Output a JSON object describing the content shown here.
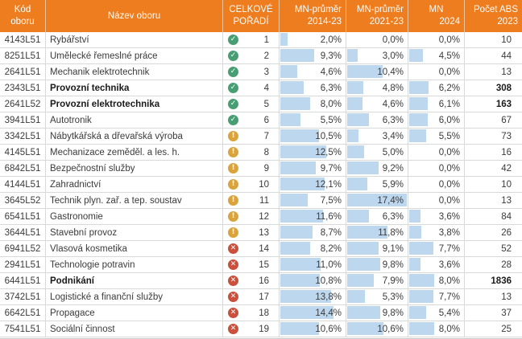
{
  "table": {
    "columns": [
      {
        "id": "code",
        "line1": "Kód oboru",
        "line2": ""
      },
      {
        "id": "name",
        "line1": "Název oboru",
        "line2": ""
      },
      {
        "id": "rank",
        "line1": "CELKOVÉ",
        "line2": "POŘADÍ"
      },
      {
        "id": "mn_avg_2014_23",
        "line1": "MN-průměr",
        "line2": "2014-23"
      },
      {
        "id": "mn_avg_2021_23",
        "line1": "MN-průměr",
        "line2": "2021-23"
      },
      {
        "id": "mn_2024",
        "line1": "MN",
        "line2": "2024"
      },
      {
        "id": "abs_2023",
        "line1": "Počet ABS",
        "line2": "2023"
      }
    ],
    "bar_scale_max": 17.4,
    "icon_glyphs": {
      "check": "✓",
      "warn": "!",
      "cross": "✕"
    },
    "icon_names": {
      "check": "green-check-icon",
      "warn": "amber-exclamation-icon",
      "cross": "red-cross-icon"
    },
    "rows": [
      {
        "code": "4143L51",
        "name": "Rybářství",
        "icon": "check",
        "rank": "1",
        "mn_avg_2014_23": "2,0%",
        "mn_avg_2021_23": "0,0%",
        "mn_2024": "0,0%",
        "abs_2023": "10",
        "bold": false
      },
      {
        "code": "8251L51",
        "name": "Umělecké řemeslné práce",
        "icon": "check",
        "rank": "2",
        "mn_avg_2014_23": "9,3%",
        "mn_avg_2021_23": "3,0%",
        "mn_2024": "4,5%",
        "abs_2023": "44",
        "bold": false
      },
      {
        "code": "2641L51",
        "name": "Mechanik elektrotechnik",
        "icon": "check",
        "rank": "3",
        "mn_avg_2014_23": "4,6%",
        "mn_avg_2021_23": "10,4%",
        "mn_2024": "0,0%",
        "abs_2023": "13",
        "bold": false
      },
      {
        "code": "2343L51",
        "name": "Provozní technika",
        "icon": "check",
        "rank": "4",
        "mn_avg_2014_23": "6,3%",
        "mn_avg_2021_23": "4,8%",
        "mn_2024": "6,2%",
        "abs_2023": "308",
        "bold": true
      },
      {
        "code": "2641L52",
        "name": "Provozní elektrotechnika",
        "icon": "check",
        "rank": "5",
        "mn_avg_2014_23": "8,0%",
        "mn_avg_2021_23": "4,6%",
        "mn_2024": "6,1%",
        "abs_2023": "163",
        "bold": true
      },
      {
        "code": "3941L51",
        "name": "Autotronik",
        "icon": "check",
        "rank": "6",
        "mn_avg_2014_23": "5,5%",
        "mn_avg_2021_23": "6,3%",
        "mn_2024": "6,0%",
        "abs_2023": "67",
        "bold": false
      },
      {
        "code": "3342L51",
        "name": "Nábytkářská a dřevařská výroba",
        "icon": "warn",
        "rank": "7",
        "mn_avg_2014_23": "10,5%",
        "mn_avg_2021_23": "3,4%",
        "mn_2024": "5,5%",
        "abs_2023": "73",
        "bold": false
      },
      {
        "code": "4145L51",
        "name": "Mechanizace zeměděl. a les. h.",
        "icon": "warn",
        "rank": "8",
        "mn_avg_2014_23": "12,5%",
        "mn_avg_2021_23": "5,0%",
        "mn_2024": "0,0%",
        "abs_2023": "16",
        "bold": false
      },
      {
        "code": "6842L51",
        "name": "Bezpečnostní služby",
        "icon": "warn",
        "rank": "9",
        "mn_avg_2014_23": "9,7%",
        "mn_avg_2021_23": "9,2%",
        "mn_2024": "0,0%",
        "abs_2023": "42",
        "bold": false
      },
      {
        "code": "4144L51",
        "name": "Zahradnictví",
        "icon": "warn",
        "rank": "10",
        "mn_avg_2014_23": "12,1%",
        "mn_avg_2021_23": "5,9%",
        "mn_2024": "0,0%",
        "abs_2023": "10",
        "bold": false
      },
      {
        "code": "3645L52",
        "name": "Technik plyn. zař. a tep. soustav",
        "icon": "warn",
        "rank": "11",
        "mn_avg_2014_23": "7,5%",
        "mn_avg_2021_23": "17,4%",
        "mn_2024": "0,0%",
        "abs_2023": "13",
        "bold": false
      },
      {
        "code": "6541L51",
        "name": "Gastronomie",
        "icon": "warn",
        "rank": "12",
        "mn_avg_2014_23": "11,6%",
        "mn_avg_2021_23": "6,3%",
        "mn_2024": "3,6%",
        "abs_2023": "84",
        "bold": false
      },
      {
        "code": "3644L51",
        "name": "Stavební provoz",
        "icon": "warn",
        "rank": "13",
        "mn_avg_2014_23": "8,7%",
        "mn_avg_2021_23": "11,8%",
        "mn_2024": "3,8%",
        "abs_2023": "26",
        "bold": false
      },
      {
        "code": "6941L52",
        "name": "Vlasová kosmetika",
        "icon": "cross",
        "rank": "14",
        "mn_avg_2014_23": "8,2%",
        "mn_avg_2021_23": "9,1%",
        "mn_2024": "7,7%",
        "abs_2023": "52",
        "bold": false
      },
      {
        "code": "2941L51",
        "name": "Technologie potravin",
        "icon": "cross",
        "rank": "15",
        "mn_avg_2014_23": "11,0%",
        "mn_avg_2021_23": "9,8%",
        "mn_2024": "3,6%",
        "abs_2023": "28",
        "bold": false
      },
      {
        "code": "6441L51",
        "name": "Podnikání",
        "icon": "cross",
        "rank": "16",
        "mn_avg_2014_23": "10,8%",
        "mn_avg_2021_23": "7,9%",
        "mn_2024": "8,0%",
        "abs_2023": "1836",
        "bold": true
      },
      {
        "code": "3742L51",
        "name": "Logistické a finanční služby",
        "icon": "cross",
        "rank": "17",
        "mn_avg_2014_23": "13,8%",
        "mn_avg_2021_23": "5,3%",
        "mn_2024": "7,7%",
        "abs_2023": "13",
        "bold": false
      },
      {
        "code": "6642L51",
        "name": "Propagace",
        "icon": "cross",
        "rank": "18",
        "mn_avg_2014_23": "14,4%",
        "mn_avg_2021_23": "9,8%",
        "mn_2024": "5,4%",
        "abs_2023": "37",
        "bold": false
      },
      {
        "code": "7541L51",
        "name": "Sociální činnost",
        "icon": "cross",
        "rank": "19",
        "mn_avg_2014_23": "10,6%",
        "mn_avg_2021_23": "10,6%",
        "mn_2024": "8,0%",
        "abs_2023": "25",
        "bold": false
      }
    ]
  },
  "colors": {
    "header_bg": "#ED7D1F",
    "header_text": "#FFFFFF",
    "data_bar": "#BDD7EE",
    "grid_line": "#D9D9D9",
    "icon_green": "#479E72",
    "icon_amber": "#DBA33B",
    "icon_red": "#C8503C"
  }
}
